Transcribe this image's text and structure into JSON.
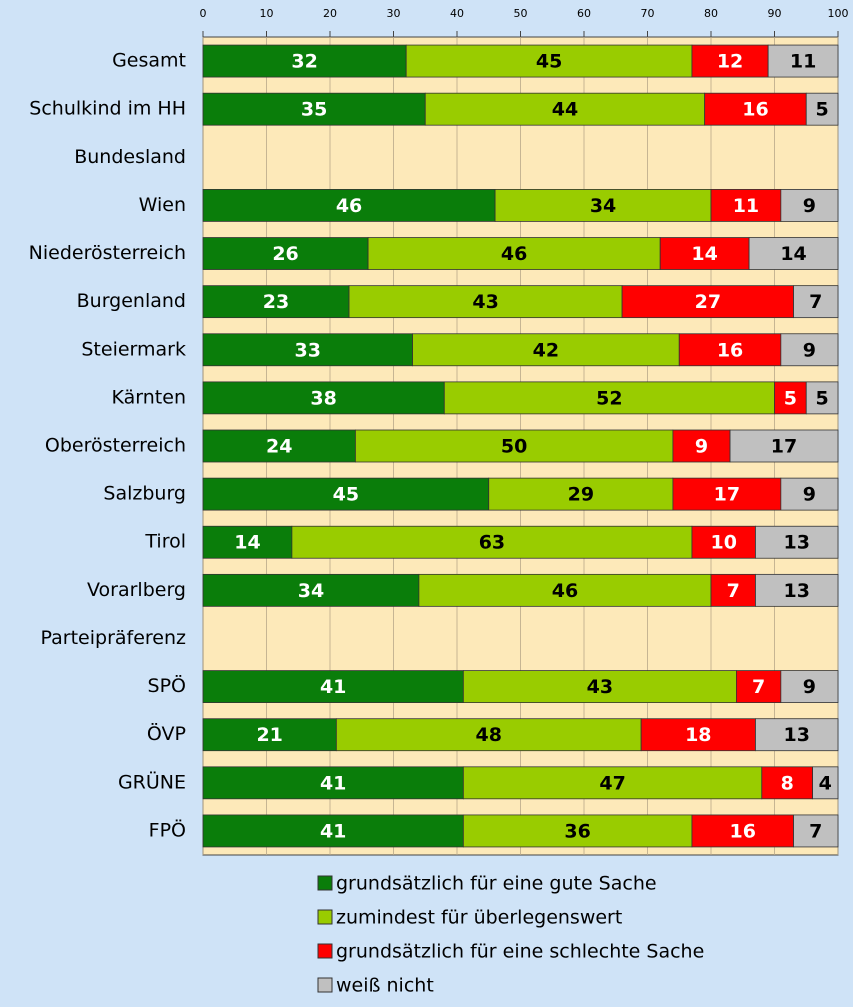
{
  "chart_data": {
    "type": "stacked-barh",
    "categories": [
      "Gesamt",
      "Schulkind im HH",
      "Bundesland",
      "Wien",
      "Niederösterreich",
      "Burgenland",
      "Steiermark",
      "Kärnten",
      "Oberösterreich",
      "Salzburg",
      "Tirol",
      "Vorarlberg",
      "Parteipräferenz",
      "SPÖ",
      "ÖVP",
      "GRÜNE",
      "FPÖ"
    ],
    "series": [
      {
        "name": "grundsätzlich für eine gute Sache",
        "color": "#0a7d0a",
        "label_color": "#ffffff",
        "values": [
          32,
          35,
          null,
          46,
          26,
          23,
          33,
          38,
          24,
          45,
          14,
          34,
          null,
          41,
          21,
          41,
          41
        ]
      },
      {
        "name": "zumindest für überlegenswert",
        "color": "#99cc00",
        "label_color": "#000000",
        "values": [
          45,
          44,
          null,
          34,
          46,
          43,
          42,
          52,
          50,
          29,
          63,
          46,
          null,
          43,
          48,
          47,
          36
        ]
      },
      {
        "name": "grundsätzlich für eine schlechte Sache",
        "color": "#ff0000",
        "label_color": "#ffffff",
        "values": [
          12,
          16,
          null,
          11,
          14,
          27,
          16,
          5,
          9,
          17,
          10,
          7,
          null,
          7,
          18,
          8,
          16
        ]
      },
      {
        "name": "weiß nicht",
        "color": "#c0c0c0",
        "label_color": "#000000",
        "values": [
          11,
          5,
          null,
          9,
          14,
          7,
          9,
          5,
          17,
          9,
          13,
          13,
          null,
          9,
          13,
          4,
          7
        ]
      }
    ],
    "xlim": [
      0,
      100
    ],
    "xticks": [
      0,
      10,
      20,
      30,
      40,
      50,
      60,
      70,
      80,
      90,
      100
    ],
    "grid": true,
    "legend": "bottom"
  }
}
